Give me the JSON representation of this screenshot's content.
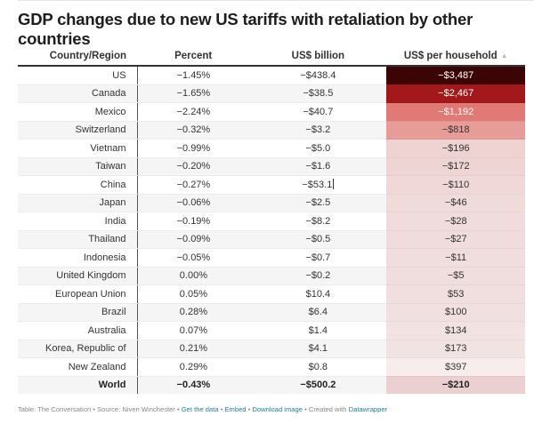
{
  "title": "GDP changes due to new US tariffs with retaliation by other countries",
  "chart_data": {
    "type": "table",
    "title": "GDP changes due to new US tariffs with retaliation by other countries",
    "columns": [
      "Country/Region",
      "Percent",
      "US$ billion",
      "US$ per household"
    ],
    "sorted_column": "US$ per household",
    "sort_direction": "ascending",
    "heatmap_column": "US$ per household",
    "rows": [
      {
        "country": "US",
        "percent": "−1.45%",
        "billion": "−$438.4",
        "household": "−$3,487",
        "household_value": -3487,
        "color": "#3a0504",
        "text_color": "#ffffff"
      },
      {
        "country": "Canada",
        "percent": "−1.65%",
        "billion": "−$38.5",
        "household": "−$2,467",
        "household_value": -2467,
        "color": "#a3191b",
        "text_color": "#ffffff"
      },
      {
        "country": "Mexico",
        "percent": "−2.24%",
        "billion": "−$40.7",
        "household": "−$1,192",
        "household_value": -1192,
        "color": "#e17a75",
        "text_color": "#ffffff"
      },
      {
        "country": "Switzerland",
        "percent": "−0.32%",
        "billion": "−$3.2",
        "household": "−$818",
        "household_value": -818,
        "color": "#e89c98",
        "text_color": "#333333"
      },
      {
        "country": "Vietnam",
        "percent": "−0.99%",
        "billion": "−$5.0",
        "household": "−$196",
        "household_value": -196,
        "color": "#efd2d2",
        "text_color": "#333333"
      },
      {
        "country": "Taiwan",
        "percent": "−0.20%",
        "billion": "−$1.6",
        "household": "−$172",
        "household_value": -172,
        "color": "#efd4d4",
        "text_color": "#333333"
      },
      {
        "country": "China",
        "percent": "−0.27%",
        "billion": "−$53.1",
        "household": "−$110",
        "household_value": -110,
        "color": "#f0d8d8",
        "text_color": "#333333"
      },
      {
        "country": "Japan",
        "percent": "−0.06%",
        "billion": "−$2.5",
        "household": "−$46",
        "household_value": -46,
        "color": "#f0dbdb",
        "text_color": "#333333"
      },
      {
        "country": "India",
        "percent": "−0.19%",
        "billion": "−$8.2",
        "household": "−$28",
        "household_value": -28,
        "color": "#f0dcdc",
        "text_color": "#333333"
      },
      {
        "country": "Thailand",
        "percent": "−0.09%",
        "billion": "−$0.5",
        "household": "−$27",
        "household_value": -27,
        "color": "#f0dcdc",
        "text_color": "#333333"
      },
      {
        "country": "Indonesia",
        "percent": "−0.05%",
        "billion": "−$0.7",
        "household": "−$11",
        "household_value": -11,
        "color": "#f0dddd",
        "text_color": "#333333"
      },
      {
        "country": "United Kingdom",
        "percent": "0.00%",
        "billion": "−$0.2",
        "household": "−$5",
        "household_value": -5,
        "color": "#f0dddd",
        "text_color": "#333333"
      },
      {
        "country": "European Union",
        "percent": "0.05%",
        "billion": "$10.4",
        "household": "$53",
        "household_value": 53,
        "color": "#f1dfdf",
        "text_color": "#333333"
      },
      {
        "country": "Brazil",
        "percent": "0.28%",
        "billion": "$6.4",
        "household": "$100",
        "household_value": 100,
        "color": "#f1e0e0",
        "text_color": "#333333"
      },
      {
        "country": "Australia",
        "percent": "0.07%",
        "billion": "$1.4",
        "household": "$134",
        "household_value": 134,
        "color": "#f2e2e2",
        "text_color": "#333333"
      },
      {
        "country": "Korea, Republic of",
        "percent": "0.21%",
        "billion": "$4.1",
        "household": "$173",
        "household_value": 173,
        "color": "#f2e3e3",
        "text_color": "#333333"
      },
      {
        "country": "New Zealand",
        "percent": "0.29%",
        "billion": "$0.8",
        "household": "$397",
        "household_value": 397,
        "color": "#f7eded",
        "text_color": "#333333"
      }
    ],
    "total": {
      "country": "World",
      "percent": "−0.43%",
      "billion": "−$500.2",
      "household": "−$210",
      "household_value": -210,
      "color": "#eccfd0",
      "text_color": "#222222"
    }
  },
  "footer": {
    "table_credit": "Table: The Conversation",
    "source": "Source: Niven Winchester",
    "separator": " • ",
    "links": {
      "get_data": "Get the data",
      "embed": "Embed",
      "download": "Download image"
    },
    "created_with": "Created with",
    "tool": "Datawrapper"
  }
}
